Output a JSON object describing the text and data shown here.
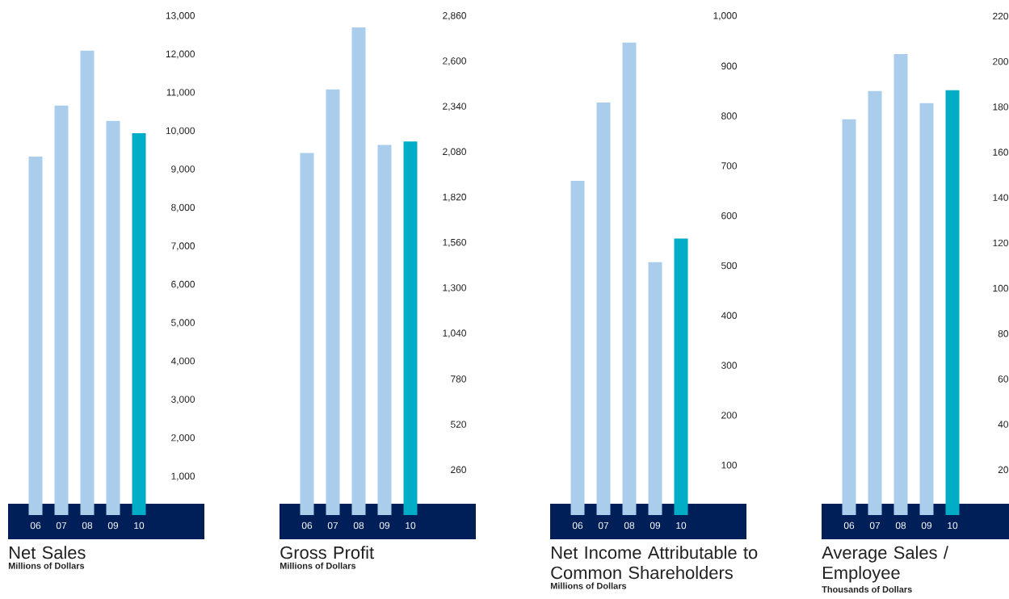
{
  "chart_data": [
    {
      "type": "bar",
      "title": "Net Sales",
      "subtitle": "Millions of Dollars",
      "categories": [
        "06",
        "07",
        "08",
        "09",
        "10"
      ],
      "values": [
        9340,
        10670,
        12100,
        10270,
        9950
      ],
      "colors": [
        "#abcdec",
        "#abcdec",
        "#abcdec",
        "#abcdec",
        "#00adc6"
      ],
      "ylim": [
        0,
        13000
      ],
      "yticks": [
        {
          "value": 1000,
          "label": "1,000"
        },
        {
          "value": 2000,
          "label": "2,000"
        },
        {
          "value": 3000,
          "label": "3,000"
        },
        {
          "value": 4000,
          "label": "4,000"
        },
        {
          "value": 5000,
          "label": "5,000"
        },
        {
          "value": 6000,
          "label": "6,000"
        },
        {
          "value": 7000,
          "label": "7,000"
        },
        {
          "value": 8000,
          "label": "8,000"
        },
        {
          "value": 9000,
          "label": "9,000"
        },
        {
          "value": 10000,
          "label": "10,000"
        },
        {
          "value": 11000,
          "label": "11,000"
        },
        {
          "value": 12000,
          "label": "12,000"
        },
        {
          "value": 13000,
          "label": "13,000"
        }
      ]
    },
    {
      "type": "bar",
      "title": "Gross Profit",
      "subtitle": "Millions of Dollars",
      "categories": [
        "06",
        "07",
        "08",
        "09",
        "10"
      ],
      "values": [
        2076,
        2440,
        2795,
        2122,
        2141
      ],
      "colors": [
        "#abcdec",
        "#abcdec",
        "#abcdec",
        "#abcdec",
        "#00adc6"
      ],
      "ylim": [
        0,
        2860
      ],
      "yticks": [
        260,
        520,
        780,
        {
          "value": 1040,
          "label": "1,040"
        },
        {
          "value": 1300,
          "label": "1,300"
        },
        {
          "value": 1560,
          "label": "1,560"
        },
        {
          "value": 1820,
          "label": "1,820"
        },
        {
          "value": 2080,
          "label": "2,080"
        },
        {
          "value": 2340,
          "label": "2,340"
        },
        {
          "value": 2600,
          "label": "2,600"
        },
        {
          "value": 2860,
          "label": "2,860"
        }
      ]
    },
    {
      "type": "bar",
      "title": "Net Income Attributable to Common Shareholders",
      "subtitle": "Millions of Dollars",
      "categories": [
        "06",
        "07",
        "08",
        "09",
        "10"
      ],
      "values": [
        670,
        827,
        947,
        507,
        554
      ],
      "colors": [
        "#abcdec",
        "#abcdec",
        "#abcdec",
        "#abcdec",
        "#00adc6"
      ],
      "ylim": [
        0,
        1000
      ],
      "yticks": [
        100,
        200,
        300,
        400,
        500,
        600,
        700,
        800,
        900,
        {
          "value": 1000,
          "label": "1,000"
        }
      ]
    },
    {
      "type": "bar",
      "title": "Average Sales / Employee",
      "subtitle": "Thousands of Dollars",
      "categories": [
        "06",
        "07",
        "08",
        "09",
        "10"
      ],
      "values": [
        174.5,
        187,
        203.3,
        181.6,
        187.3
      ],
      "colors": [
        "#abcdec",
        "#abcdec",
        "#abcdec",
        "#abcdec",
        "#00adc6"
      ],
      "ylim": [
        0,
        220
      ],
      "yticks": [
        20,
        40,
        60,
        80,
        100,
        120,
        140,
        160,
        180,
        200,
        220
      ]
    }
  ]
}
